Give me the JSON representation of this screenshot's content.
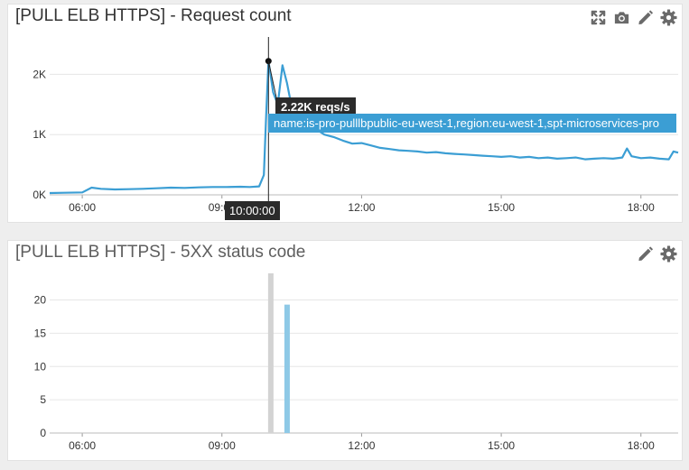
{
  "panels": {
    "request_count": {
      "title": "[PULL ELB HTTPS] - Request count",
      "tools": [
        "expand-icon",
        "camera-icon",
        "pencil-icon",
        "gear-icon"
      ]
    },
    "status_5xx": {
      "title": "[PULL ELB HTTPS] - 5XX status code",
      "tools": [
        "pencil-icon",
        "gear-icon"
      ]
    }
  },
  "hover": {
    "time": "10:00:00",
    "value_label": "2.22K reqs/s",
    "series_label": "name:is-pro-pulllbpublic-eu-west-1,region:eu-west-1,spt-microservices-pro"
  },
  "colors": {
    "line": "#3b9ed4",
    "bar_grey": "#d3d3d3",
    "bar_blue": "#8ec9e6",
    "grid": "#e6e6e6"
  },
  "chart_data": [
    {
      "type": "line",
      "title": "[PULL ELB HTTPS] - Request count",
      "x_ticks": [
        "06:00",
        "09:00",
        "12:00",
        "15:00",
        "18:00"
      ],
      "y_ticks": [
        "0K",
        "1K",
        "2K"
      ],
      "xlim_hours": [
        5.3,
        18.8
      ],
      "ylim": [
        0,
        2500
      ],
      "unit": "reqs/s",
      "grid": true,
      "series": [
        {
          "name": "name:is-pro-pulllbpublic-eu-west-1,region:eu-west-1,spt-microservices-pro",
          "x_hours": [
            5.3,
            5.6,
            6.0,
            6.2,
            6.4,
            6.7,
            7.0,
            7.3,
            7.6,
            7.9,
            8.2,
            8.5,
            8.8,
            9.1,
            9.4,
            9.6,
            9.8,
            9.9,
            9.95,
            10.0,
            10.1,
            10.2,
            10.3,
            10.4,
            10.5,
            10.6,
            10.8,
            11.0,
            11.2,
            11.4,
            11.6,
            11.8,
            12.0,
            12.2,
            12.4,
            12.6,
            12.8,
            13.0,
            13.2,
            13.4,
            13.6,
            13.8,
            14.0,
            14.2,
            14.4,
            14.6,
            14.8,
            15.0,
            15.2,
            15.4,
            15.6,
            15.8,
            16.0,
            16.2,
            16.4,
            16.6,
            16.8,
            17.0,
            17.2,
            17.4,
            17.6,
            17.7,
            17.8,
            18.0,
            18.2,
            18.4,
            18.6,
            18.7,
            18.8
          ],
          "values": [
            30,
            35,
            40,
            120,
            100,
            90,
            95,
            100,
            110,
            120,
            115,
            125,
            130,
            130,
            135,
            130,
            140,
            330,
            1300,
            2220,
            1700,
            1500,
            2150,
            1850,
            1450,
            1320,
            1200,
            1100,
            1000,
            960,
            900,
            850,
            860,
            820,
            780,
            760,
            740,
            730,
            720,
            700,
            710,
            690,
            680,
            670,
            660,
            650,
            640,
            630,
            640,
            620,
            630,
            610,
            620,
            600,
            610,
            620,
            590,
            600,
            610,
            600,
            620,
            770,
            640,
            610,
            620,
            600,
            590,
            720,
            700
          ]
        }
      ]
    },
    {
      "type": "bar",
      "title": "[PULL ELB HTTPS] - 5XX status code",
      "x_ticks": [
        "06:00",
        "09:00",
        "12:00",
        "15:00",
        "18:00"
      ],
      "y_ticks": [
        "0",
        "5",
        "10",
        "15",
        "20"
      ],
      "xlim_hours": [
        5.3,
        18.8
      ],
      "ylim": [
        0,
        24
      ],
      "grid": true,
      "bars": [
        {
          "x_hour": 10.05,
          "value": 24,
          "color": "grey"
        },
        {
          "x_hour": 10.4,
          "value": 19.3,
          "color": "blue"
        }
      ]
    }
  ]
}
